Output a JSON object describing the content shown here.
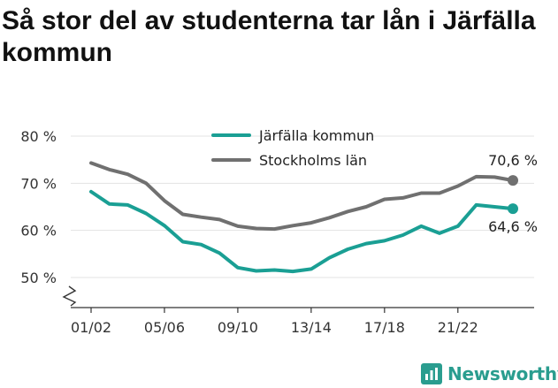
{
  "title": "Så stor del av studenterna tar lån i Järfälla kommun",
  "brand": {
    "name": "Newsworthy"
  },
  "chart_data": {
    "type": "line",
    "title": "Så stor del av studenterna tar lån i Järfälla kommun",
    "xlabel": "",
    "ylabel": "",
    "x": [
      "01/02",
      "02/03",
      "03/04",
      "04/05",
      "05/06",
      "06/07",
      "07/08",
      "08/09",
      "09/10",
      "10/11",
      "11/12",
      "12/13",
      "13/14",
      "14/15",
      "15/16",
      "16/17",
      "17/18",
      "18/19",
      "19/20",
      "20/21",
      "21/22",
      "22/23",
      "23/24",
      "24/25"
    ],
    "tick_labels": [
      "01/02",
      "05/06",
      "09/10",
      "13/14",
      "17/18",
      "21/22"
    ],
    "tick_indices": [
      0,
      4,
      8,
      12,
      16,
      20
    ],
    "yticks": [
      50,
      60,
      70,
      80
    ],
    "ytick_labels": [
      "50 %",
      "60 %",
      "70 %",
      "80 %"
    ],
    "ylim": [
      45,
      82
    ],
    "grid": true,
    "axis_break": true,
    "legend_position": "top-center",
    "series": [
      {
        "name": "Järfälla kommun",
        "color": "#1a9f94",
        "values": [
          68.2,
          65.6,
          65.4,
          63.6,
          61.0,
          57.6,
          57.0,
          55.2,
          52.1,
          51.4,
          51.6,
          51.3,
          51.8,
          54.2,
          56.0,
          57.2,
          57.8,
          59.0,
          60.9,
          59.4,
          60.9,
          65.4,
          65.0,
          64.6
        ],
        "end_label": "64,6 %"
      },
      {
        "name": "Stockholms län",
        "color": "#707070",
        "values": [
          74.3,
          72.9,
          71.9,
          70.0,
          66.3,
          63.4,
          62.8,
          62.3,
          60.9,
          60.4,
          60.3,
          61.0,
          61.6,
          62.7,
          64.0,
          65.0,
          66.6,
          66.9,
          67.9,
          67.9,
          69.4,
          71.4,
          71.3,
          70.6
        ],
        "end_label": "70,6 %"
      }
    ]
  }
}
